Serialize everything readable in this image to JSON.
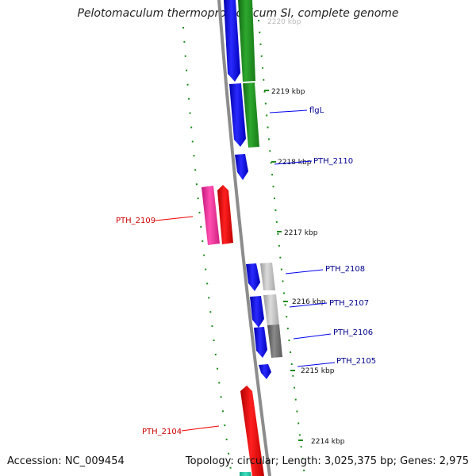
{
  "title": "Pelotomaculum thermopropionicum SI, complete genome",
  "footer": {
    "accession": "Accession: NC_009454",
    "topology": "Topology: circular; Length: 3,025,375 bp; Genes: 2,975"
  },
  "colors": {
    "backbone": "#8c8c8c",
    "ruler": "#1f8a1f",
    "cds_forward": "#0000ee",
    "cds_reverse": "#ee0000",
    "rna": "#1f8a1f",
    "label_forward": "#00008b",
    "label_reverse": "#cc0000"
  },
  "ruler": {
    "unit": "kbp",
    "ticks": [
      "2220 kbp",
      "2219 kbp",
      "2218 kbp",
      "2217 kbp",
      "2216 kbp",
      "2215 kbp",
      "2214 kbp"
    ]
  },
  "gene_labels": [
    {
      "name": "flgL",
      "strand": "forward"
    },
    {
      "name": "PTH_2110",
      "strand": "forward"
    },
    {
      "name": "PTH_2109",
      "strand": "reverse"
    },
    {
      "name": "PTH_2108",
      "strand": "forward"
    },
    {
      "name": "PTH_2107",
      "strand": "forward"
    },
    {
      "name": "PTH_2106",
      "strand": "forward"
    },
    {
      "name": "PTH_2105",
      "strand": "forward"
    },
    {
      "name": "PTH_2104",
      "strand": "reverse"
    }
  ]
}
